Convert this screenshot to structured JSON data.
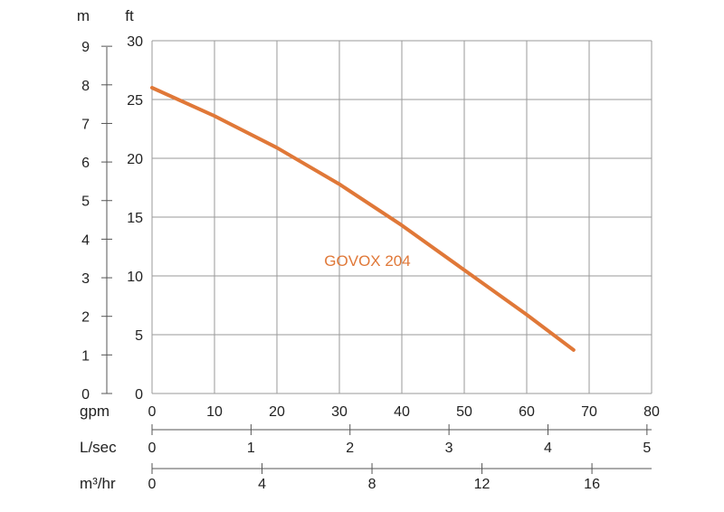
{
  "chart_data": {
    "type": "line",
    "accent_color": "#e07838",
    "grid": true,
    "y_axis_ft": {
      "unit": "ft",
      "ticks": [
        "0",
        "5",
        "10",
        "15",
        "20",
        "25",
        "30"
      ],
      "range": [
        0,
        30
      ]
    },
    "y_axis_m": {
      "unit": "m",
      "ticks": [
        "0",
        "1",
        "2",
        "3",
        "4",
        "5",
        "6",
        "7",
        "8",
        "9"
      ],
      "range": [
        0,
        9.144
      ]
    },
    "x_axis_gpm": {
      "unit": "gpm",
      "ticks": [
        "0",
        "10",
        "20",
        "30",
        "40",
        "50",
        "60",
        "70",
        "80"
      ],
      "range": [
        0,
        80
      ]
    },
    "x_axis_lsec": {
      "unit": "L/sec",
      "ticks": [
        "0",
        "1",
        "2",
        "3",
        "4",
        "5"
      ],
      "range": [
        0,
        5.047
      ]
    },
    "x_axis_m3hr": {
      "unit": "m³/hr",
      "ticks": [
        "0",
        "4",
        "8",
        "12",
        "16"
      ],
      "range": [
        0,
        18.17
      ]
    },
    "series": [
      {
        "name": "GOVOX 204",
        "x": [
          0,
          10,
          20,
          30,
          40,
          50,
          60,
          67.5
        ],
        "y": [
          26,
          23.6,
          20.9,
          17.8,
          14.3,
          10.5,
          6.7,
          3.7
        ]
      }
    ]
  }
}
